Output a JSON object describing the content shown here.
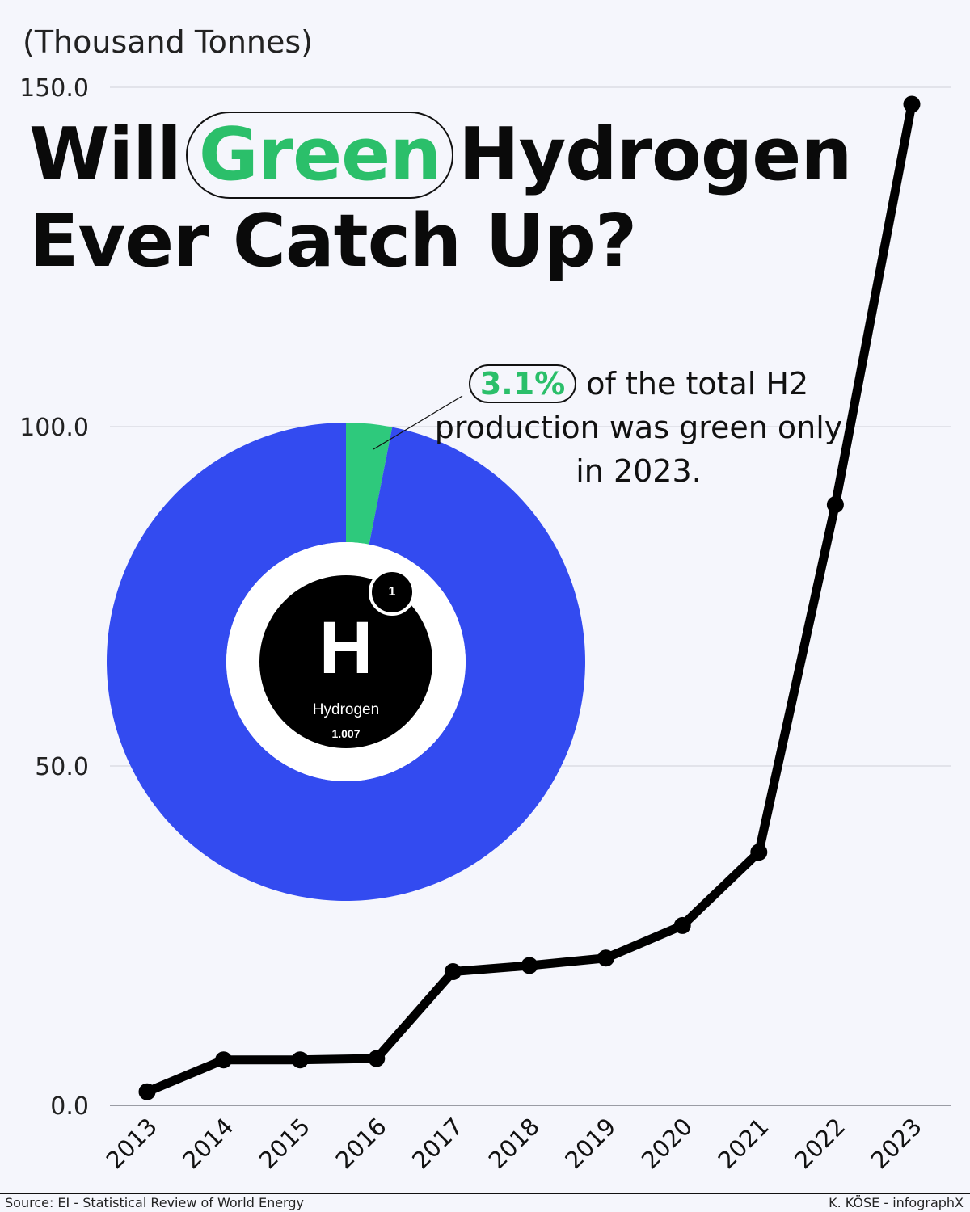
{
  "unit_label": "(Thousand Tonnes)",
  "title": {
    "word1": "Will",
    "word_highlight": "Green",
    "word3": "Hydrogen",
    "line2": "Ever Catch Up?"
  },
  "annotation": {
    "percent": "3.1%",
    "text_after": "of the total H2 production was green only in 2023."
  },
  "element": {
    "symbol": "H",
    "name": "Hydrogen",
    "mass": "1.007",
    "number": "1"
  },
  "footer": {
    "source": "Source: EI - Statistical Review of World Energy",
    "credit": "K. KÖSE - infographX"
  },
  "colors": {
    "line": "#000000",
    "grid": "#d6d8e0",
    "donut_main": "#334bf0",
    "donut_green": "#2ec97c",
    "green_text": "#2bbf6a"
  },
  "chart_data": [
    {
      "type": "line",
      "x": [
        "2013",
        "2014",
        "2015",
        "2016",
        "2017",
        "2018",
        "2019",
        "2020",
        "2021",
        "2022",
        "2023"
      ],
      "series": [
        {
          "values": [
            2.0,
            6.7,
            6.7,
            6.9,
            19.7,
            20.6,
            21.7,
            26.5,
            37.3,
            88.5,
            147.5
          ]
        }
      ],
      "ylim": [
        0,
        150
      ],
      "yticks": [
        "0.0",
        "50.0",
        "100.0",
        "150.0"
      ],
      "grid": true,
      "legend": "none"
    },
    {
      "type": "pie",
      "labels": [
        "green",
        "other"
      ],
      "values": [
        3.1,
        96.9
      ]
    }
  ]
}
